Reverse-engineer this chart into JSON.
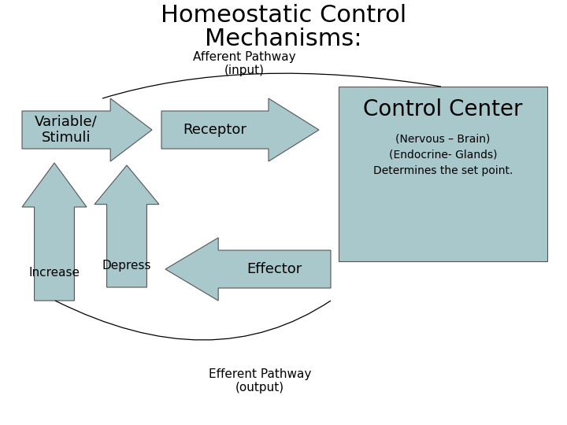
{
  "title_line1": "Homeostatic Control",
  "title_line2": "Mechanisms:",
  "afferent_label": "Afferent Pathway\n(input)",
  "efferent_label": "Efferent Pathway\n(output)",
  "variable_label": "Variable/\nStimuli",
  "receptor_label": "Receptor",
  "control_center_title": "Control Center",
  "control_center_sub1": "(Nervous – Brain)",
  "control_center_sub2": "(Endocrine- Glands)",
  "control_center_sub3": "Determines the set point.",
  "depress_label": "Depress",
  "increase_label": "Increase",
  "effector_label": "Effector",
  "arrow_color": "#a8c8cc",
  "box_color": "#a8c8cc",
  "bg_color": "#ffffff",
  "title_fontsize": 22,
  "subtitle_fontsize": 11,
  "label_fontsize": 13,
  "control_title_fontsize": 20,
  "control_sub_fontsize": 10
}
